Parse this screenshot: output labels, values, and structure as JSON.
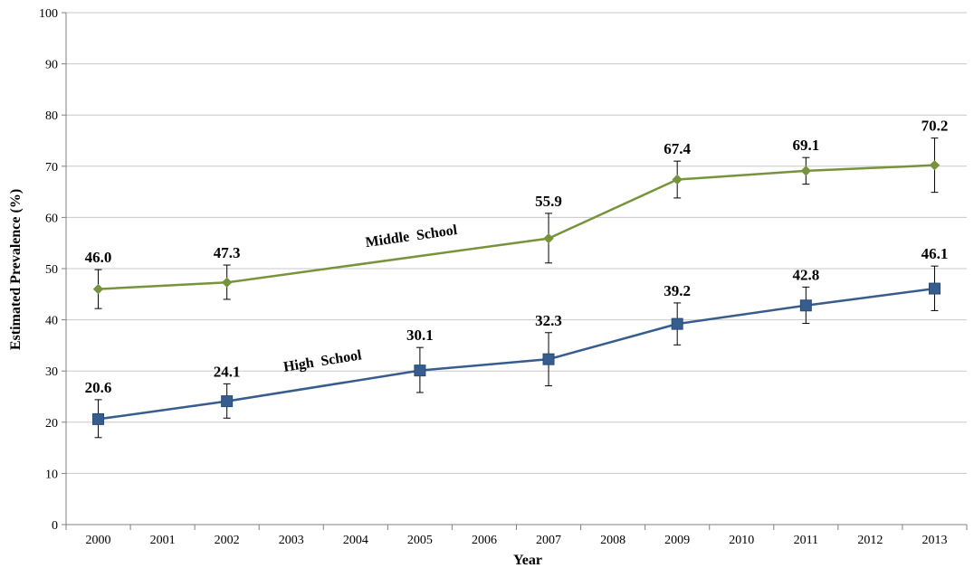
{
  "chart_data": {
    "type": "line",
    "title": "",
    "xlabel": "Year",
    "ylabel": "Estimated Prevalence (%)",
    "categories": [
      "2000",
      "2001",
      "2002",
      "2003",
      "2004",
      "2005",
      "2006",
      "2007",
      "2008",
      "2009",
      "2010",
      "2011",
      "2012",
      "2013"
    ],
    "ylim": [
      0,
      100
    ],
    "yticks": [
      0,
      10,
      20,
      30,
      40,
      50,
      60,
      70,
      80,
      90,
      100
    ],
    "grid": true,
    "series": [
      {
        "name": "Middle School",
        "color": "#77933c",
        "marker": "diamond",
        "points": [
          {
            "x": "2000",
            "y": 46.0,
            "label": "46.0",
            "err_low": 42.2,
            "err_high": 49.8
          },
          {
            "x": "2002",
            "y": 47.3,
            "label": "47.3",
            "err_low": 44.0,
            "err_high": 50.7
          },
          {
            "x": "2007",
            "y": 55.9,
            "label": "55.9",
            "err_low": 51.1,
            "err_high": 60.8
          },
          {
            "x": "2009",
            "y": 67.4,
            "label": "67.4",
            "err_low": 63.8,
            "err_high": 71.0
          },
          {
            "x": "2011",
            "y": 69.1,
            "label": "69.1",
            "err_low": 66.5,
            "err_high": 71.7
          },
          {
            "x": "2013",
            "y": 70.2,
            "label": "70.2",
            "err_low": 64.9,
            "err_high": 75.5
          }
        ]
      },
      {
        "name": "High School",
        "color": "#375d8f",
        "marker": "square",
        "points": [
          {
            "x": "2000",
            "y": 20.6,
            "label": "20.6",
            "err_low": 17.0,
            "err_high": 24.4
          },
          {
            "x": "2002",
            "y": 24.1,
            "label": "24.1",
            "err_low": 20.8,
            "err_high": 27.5
          },
          {
            "x": "2005",
            "y": 30.1,
            "label": "30.1",
            "err_low": 25.8,
            "err_high": 34.6
          },
          {
            "x": "2007",
            "y": 32.3,
            "label": "32.3",
            "err_low": 27.1,
            "err_high": 37.5
          },
          {
            "x": "2009",
            "y": 39.2,
            "label": "39.2",
            "err_low": 35.1,
            "err_high": 43.3
          },
          {
            "x": "2011",
            "y": 42.8,
            "label": "42.8",
            "err_low": 39.3,
            "err_high": 46.4
          },
          {
            "x": "2013",
            "y": 46.1,
            "label": "46.1",
            "err_low": 41.8,
            "err_high": 50.5
          }
        ]
      }
    ]
  }
}
